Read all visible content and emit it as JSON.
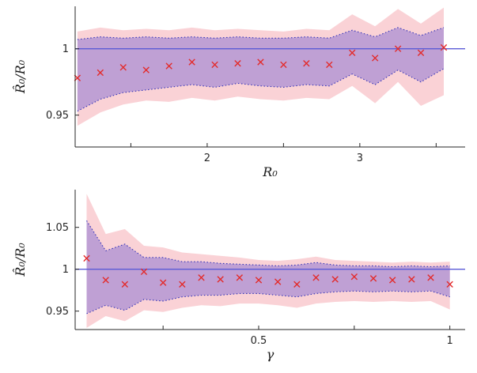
{
  "figure": {
    "background": "#ffffff"
  },
  "colors": {
    "outer_band": "#fad2d6",
    "inner_band": "#bfa0d4",
    "band_edge": "#3434b8",
    "ref_line": "#5b5bd6",
    "marker": "#e32b2b",
    "axis": "#262626",
    "tick_label": "#262626"
  },
  "chart_data": [
    {
      "type": "area",
      "title": "",
      "xlabel": "R₀",
      "ylabel": "R̂₀/R₀",
      "xlim": [
        1.135,
        3.69
      ],
      "ylim": [
        0.926,
        1.032
      ],
      "reference_line_y": 1,
      "grid": false,
      "legend": "none",
      "xticks": [
        {
          "value": 1.5,
          "label": ""
        },
        {
          "value": 2,
          "label": "2"
        },
        {
          "value": 2.5,
          "label": ""
        },
        {
          "value": 3,
          "label": "3"
        },
        {
          "value": 3.5,
          "label": ""
        }
      ],
      "yticks": [
        {
          "value": 0.95,
          "label": "0.95"
        },
        {
          "value": 1,
          "label": "1"
        }
      ],
      "x": [
        1.15,
        1.3,
        1.45,
        1.6,
        1.75,
        1.9,
        2.05,
        2.2,
        2.35,
        2.5,
        2.65,
        2.8,
        2.95,
        3.1,
        3.25,
        3.4,
        3.55
      ],
      "series": [
        {
          "name": "estimate-markers",
          "style": "scatter-x",
          "values": [
            0.978,
            0.982,
            0.986,
            0.984,
            0.987,
            0.99,
            0.988,
            0.989,
            0.99,
            0.988,
            0.989,
            0.988,
            0.997,
            0.993,
            1.0,
            0.997,
            1.001
          ]
        },
        {
          "name": "inner-band-upper",
          "style": "dotted-edge",
          "values": [
            1.007,
            1.009,
            1.008,
            1.009,
            1.008,
            1.009,
            1.008,
            1.009,
            1.008,
            1.008,
            1.009,
            1.008,
            1.014,
            1.009,
            1.016,
            1.01,
            1.016
          ]
        },
        {
          "name": "inner-band-lower",
          "style": "dotted-edge",
          "values": [
            0.953,
            0.962,
            0.967,
            0.969,
            0.971,
            0.973,
            0.971,
            0.974,
            0.972,
            0.971,
            0.973,
            0.972,
            0.981,
            0.973,
            0.984,
            0.975,
            0.985
          ]
        },
        {
          "name": "outer-band-upper",
          "style": "band-edge",
          "values": [
            1.013,
            1.016,
            1.014,
            1.015,
            1.014,
            1.016,
            1.014,
            1.015,
            1.014,
            1.013,
            1.015,
            1.014,
            1.026,
            1.017,
            1.03,
            1.019,
            1.031
          ]
        },
        {
          "name": "outer-band-lower",
          "style": "band-edge",
          "values": [
            0.942,
            0.952,
            0.958,
            0.961,
            0.96,
            0.963,
            0.961,
            0.964,
            0.962,
            0.961,
            0.963,
            0.962,
            0.972,
            0.959,
            0.975,
            0.957,
            0.965
          ]
        }
      ]
    },
    {
      "type": "area",
      "title": "",
      "xlabel": "γ",
      "ylabel": "R̂₀/R₀",
      "xlim": [
        0.02,
        1.04
      ],
      "ylim": [
        0.928,
        1.095
      ],
      "reference_line_y": 1,
      "grid": false,
      "legend": "none",
      "xticks": [
        {
          "value": 0.25,
          "label": ""
        },
        {
          "value": 0.5,
          "label": "0.5"
        },
        {
          "value": 0.75,
          "label": ""
        },
        {
          "value": 1,
          "label": "1"
        }
      ],
      "yticks": [
        {
          "value": 0.95,
          "label": "0.95"
        },
        {
          "value": 1,
          "label": "1"
        },
        {
          "value": 1.05,
          "label": "1.05"
        }
      ],
      "x": [
        0.05,
        0.1,
        0.15,
        0.2,
        0.25,
        0.3,
        0.35,
        0.4,
        0.45,
        0.5,
        0.55,
        0.6,
        0.65,
        0.7,
        0.75,
        0.8,
        0.85,
        0.9,
        0.95,
        1.0
      ],
      "series": [
        {
          "name": "estimate-markers",
          "style": "scatter-x",
          "values": [
            1.013,
            0.987,
            0.982,
            0.997,
            0.984,
            0.982,
            0.99,
            0.988,
            0.99,
            0.987,
            0.985,
            0.982,
            0.99,
            0.988,
            0.991,
            0.989,
            0.987,
            0.988,
            0.99,
            0.982
          ]
        },
        {
          "name": "inner-band-upper",
          "style": "dotted-edge",
          "values": [
            1.058,
            1.022,
            1.03,
            1.014,
            1.014,
            1.009,
            1.009,
            1.007,
            1.006,
            1.005,
            1.004,
            1.005,
            1.008,
            1.005,
            1.004,
            1.004,
            1.003,
            1.004,
            1.003,
            1.004
          ]
        },
        {
          "name": "inner-band-lower",
          "style": "dotted-edge",
          "values": [
            0.947,
            0.957,
            0.951,
            0.964,
            0.962,
            0.967,
            0.969,
            0.969,
            0.971,
            0.971,
            0.969,
            0.967,
            0.971,
            0.973,
            0.974,
            0.973,
            0.974,
            0.973,
            0.974,
            0.967
          ]
        },
        {
          "name": "outer-band-upper",
          "style": "band-edge",
          "values": [
            1.09,
            1.042,
            1.048,
            1.028,
            1.026,
            1.02,
            1.018,
            1.016,
            1.014,
            1.011,
            1.01,
            1.012,
            1.015,
            1.011,
            1.01,
            1.009,
            1.008,
            1.009,
            1.008,
            1.009
          ]
        },
        {
          "name": "outer-band-lower",
          "style": "band-edge",
          "values": [
            0.93,
            0.944,
            0.938,
            0.951,
            0.949,
            0.954,
            0.957,
            0.956,
            0.959,
            0.959,
            0.957,
            0.954,
            0.959,
            0.961,
            0.962,
            0.961,
            0.962,
            0.961,
            0.962,
            0.952
          ]
        }
      ]
    }
  ]
}
